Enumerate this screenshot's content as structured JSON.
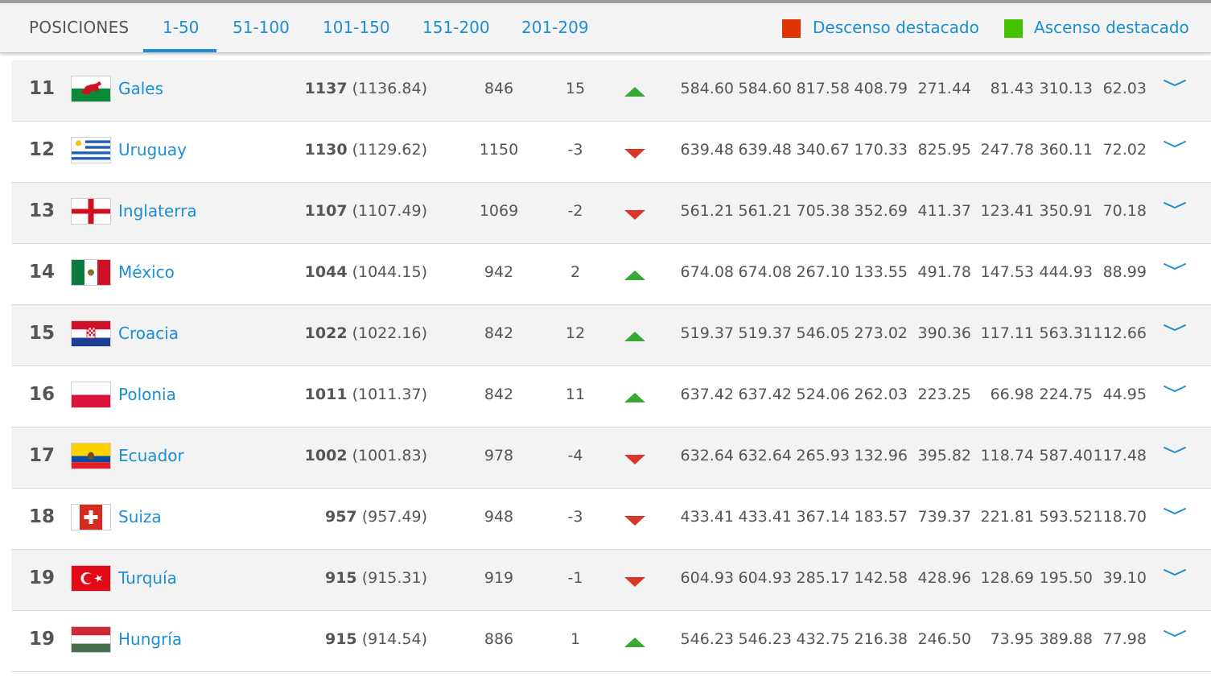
{
  "header": {
    "positions_label": "POSICIONES",
    "tabs": [
      {
        "label": "1-50",
        "active": true
      },
      {
        "label": "51-100",
        "active": false
      },
      {
        "label": "101-150",
        "active": false
      },
      {
        "label": "151-200",
        "active": false
      },
      {
        "label": "201-209",
        "active": false
      }
    ],
    "legend": [
      {
        "label": "Descenso destacado",
        "color": "#e03400"
      },
      {
        "label": "Ascenso destacado",
        "color": "#44c200"
      }
    ]
  },
  "colors": {
    "link": "#1b8fd4",
    "up": "#3aa835",
    "down": "#d9372a"
  },
  "rows": [
    {
      "rank": "11",
      "team": "Gales",
      "flag": "wales-flag",
      "points": "1137",
      "points_exact": "(1136.84)",
      "previous": "846",
      "change": "15",
      "trend": "up",
      "values": [
        "584.60",
        "584.60",
        "817.58",
        "408.79",
        "271.44",
        "81.43",
        "310.13",
        "62.03"
      ]
    },
    {
      "rank": "12",
      "team": "Uruguay",
      "flag": "uruguay-flag",
      "points": "1130",
      "points_exact": "(1129.62)",
      "previous": "1150",
      "change": "-3",
      "trend": "down",
      "values": [
        "639.48",
        "639.48",
        "340.67",
        "170.33",
        "825.95",
        "247.78",
        "360.11",
        "72.02"
      ]
    },
    {
      "rank": "13",
      "team": "Inglaterra",
      "flag": "england-flag",
      "points": "1107",
      "points_exact": "(1107.49)",
      "previous": "1069",
      "change": "-2",
      "trend": "down",
      "values": [
        "561.21",
        "561.21",
        "705.38",
        "352.69",
        "411.37",
        "123.41",
        "350.91",
        "70.18"
      ]
    },
    {
      "rank": "14",
      "team": "México",
      "flag": "mexico-flag",
      "points": "1044",
      "points_exact": "(1044.15)",
      "previous": "942",
      "change": "2",
      "trend": "up",
      "values": [
        "674.08",
        "674.08",
        "267.10",
        "133.55",
        "491.78",
        "147.53",
        "444.93",
        "88.99"
      ]
    },
    {
      "rank": "15",
      "team": "Croacia",
      "flag": "croatia-flag",
      "points": "1022",
      "points_exact": "(1022.16)",
      "previous": "842",
      "change": "12",
      "trend": "up",
      "values": [
        "519.37",
        "519.37",
        "546.05",
        "273.02",
        "390.36",
        "117.11",
        "563.31",
        "112.66"
      ]
    },
    {
      "rank": "16",
      "team": "Polonia",
      "flag": "poland-flag",
      "points": "1011",
      "points_exact": "(1011.37)",
      "previous": "842",
      "change": "11",
      "trend": "up",
      "values": [
        "637.42",
        "637.42",
        "524.06",
        "262.03",
        "223.25",
        "66.98",
        "224.75",
        "44.95"
      ]
    },
    {
      "rank": "17",
      "team": "Ecuador",
      "flag": "ecuador-flag",
      "points": "1002",
      "points_exact": "(1001.83)",
      "previous": "978",
      "change": "-4",
      "trend": "down",
      "values": [
        "632.64",
        "632.64",
        "265.93",
        "132.96",
        "395.82",
        "118.74",
        "587.40",
        "117.48"
      ]
    },
    {
      "rank": "18",
      "team": "Suiza",
      "flag": "switzerland-flag",
      "points": "957",
      "points_exact": "(957.49)",
      "previous": "948",
      "change": "-3",
      "trend": "down",
      "values": [
        "433.41",
        "433.41",
        "367.14",
        "183.57",
        "739.37",
        "221.81",
        "593.52",
        "118.70"
      ]
    },
    {
      "rank": "19",
      "team": "Turquía",
      "flag": "turkey-flag",
      "points": "915",
      "points_exact": "(915.31)",
      "previous": "919",
      "change": "-1",
      "trend": "down",
      "values": [
        "604.93",
        "604.93",
        "285.17",
        "142.58",
        "428.96",
        "128.69",
        "195.50",
        "39.10"
      ]
    },
    {
      "rank": "19",
      "team": "Hungría",
      "flag": "hungary-flag",
      "points": "915",
      "points_exact": "(914.54)",
      "previous": "886",
      "change": "1",
      "trend": "up",
      "values": [
        "546.23",
        "546.23",
        "432.75",
        "216.38",
        "246.50",
        "73.95",
        "389.88",
        "77.98"
      ]
    }
  ]
}
